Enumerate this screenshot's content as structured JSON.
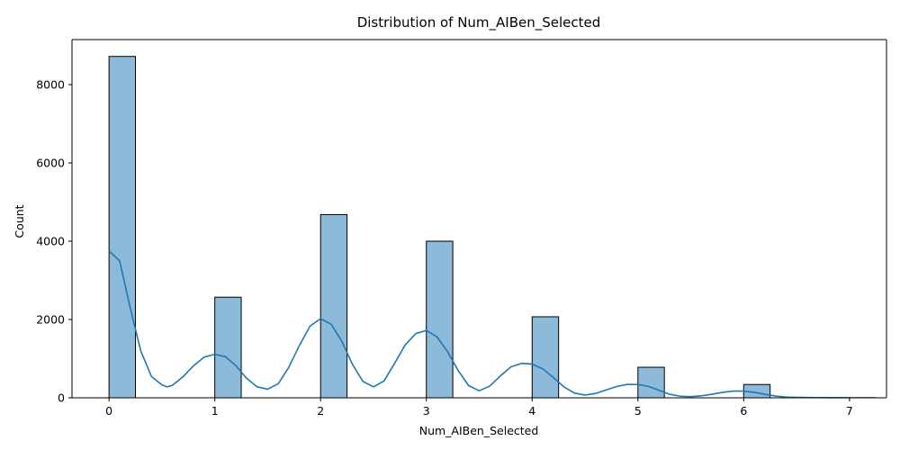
{
  "chart_data": {
    "type": "bar",
    "title": "Distribution of Num_AIBen_Selected",
    "xlabel": "Num_AIBen_Selected",
    "ylabel": "Count",
    "xlim": [
      -0.35,
      7.35
    ],
    "ylim": [
      0,
      9150
    ],
    "x_ticks": [
      "0",
      "1",
      "2",
      "3",
      "4",
      "5",
      "6",
      "7"
    ],
    "y_ticks": [
      "0",
      "2000",
      "4000",
      "6000",
      "8000"
    ],
    "bin_width": 0.25,
    "bars": [
      {
        "x": 0,
        "count": 8720
      },
      {
        "x": 1,
        "count": 2570
      },
      {
        "x": 2,
        "count": 4680
      },
      {
        "x": 3,
        "count": 4000
      },
      {
        "x": 4,
        "count": 2070
      },
      {
        "x": 5,
        "count": 780
      },
      {
        "x": 6,
        "count": 340
      },
      {
        "x": 7,
        "count": 5
      }
    ],
    "kde": {
      "x": [
        0,
        0.1,
        0.2,
        0.3,
        0.4,
        0.5,
        0.55,
        0.6,
        0.7,
        0.8,
        0.9,
        1.0,
        1.1,
        1.2,
        1.3,
        1.4,
        1.5,
        1.6,
        1.7,
        1.8,
        1.9,
        2.0,
        2.1,
        2.2,
        2.3,
        2.4,
        2.5,
        2.6,
        2.7,
        2.8,
        2.9,
        3.0,
        3.1,
        3.2,
        3.3,
        3.4,
        3.5,
        3.6,
        3.7,
        3.8,
        3.9,
        4.0,
        4.1,
        4.2,
        4.3,
        4.4,
        4.5,
        4.6,
        4.7,
        4.8,
        4.9,
        5.0,
        5.1,
        5.2,
        5.3,
        5.4,
        5.5,
        5.6,
        5.7,
        5.8,
        5.9,
        6.0,
        6.1,
        6.2,
        6.3,
        6.4,
        6.5,
        6.6,
        6.7,
        6.8,
        6.9,
        7.0
      ],
      "y": [
        3750,
        3500,
        2300,
        1200,
        550,
        330,
        280,
        320,
        540,
        820,
        1040,
        1110,
        1050,
        820,
        500,
        280,
        220,
        360,
        780,
        1340,
        1830,
        2020,
        1880,
        1450,
        860,
        420,
        280,
        430,
        880,
        1350,
        1640,
        1720,
        1560,
        1180,
        700,
        310,
        180,
        300,
        560,
        790,
        880,
        860,
        740,
        520,
        280,
        120,
        70,
        110,
        200,
        290,
        340,
        340,
        290,
        190,
        90,
        40,
        30,
        50,
        90,
        140,
        170,
        170,
        140,
        90,
        45,
        20,
        10,
        8,
        6,
        5,
        4,
        3
      ]
    },
    "colors": {
      "bar_fill": "#8ebad9",
      "bar_stroke": "#000000",
      "kde_line": "#1f77b4",
      "axis": "#000000"
    },
    "grid": false,
    "legend": "none"
  }
}
